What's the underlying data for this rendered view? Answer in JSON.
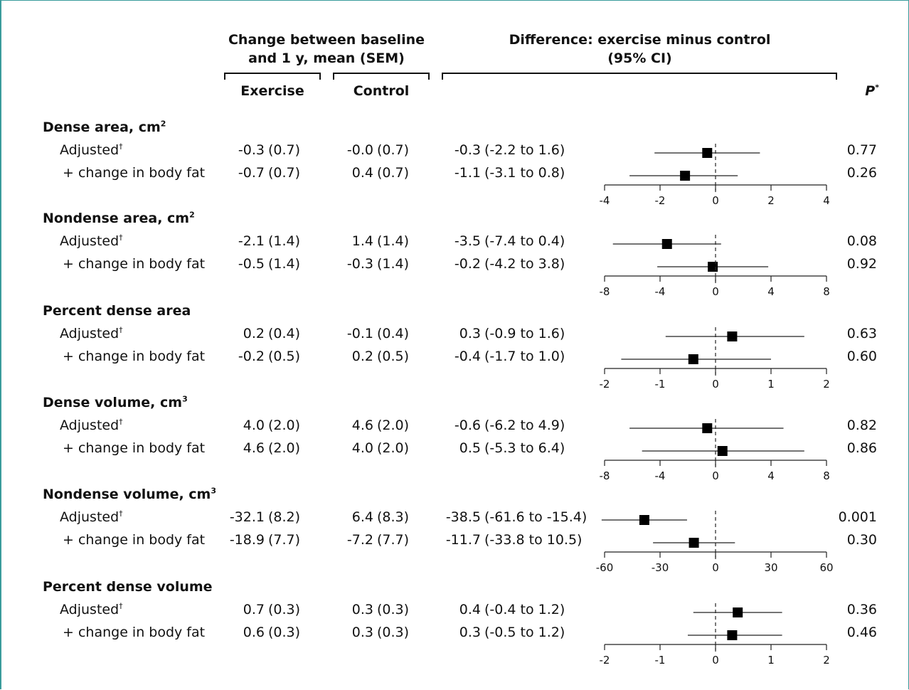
{
  "headers": {
    "change": [
      "Change between baseline",
      "and 1 y, mean (SEM)"
    ],
    "difference": [
      "Difference: exercise minus control",
      "(95% CI)"
    ],
    "exercise": "Exercise",
    "control": "Control",
    "p_label": "P",
    "p_mark": "*"
  },
  "row_labels": {
    "adjusted": "Adjusted",
    "adjusted_mark": "†",
    "bodyfat": "+ change in body fat"
  },
  "chart_data": {
    "type": "forest",
    "reference_line": 0,
    "sections": [
      {
        "title": "Dense area, cm",
        "sup": "2",
        "ticks": [
          "-4",
          "-2",
          "0",
          "2",
          "4"
        ],
        "xlim": [
          -4,
          4
        ],
        "rows": [
          {
            "exercise": "-0.3",
            "exercise_sem": "(0.7)",
            "control": "-0.0",
            "control_sem": "(0.7)",
            "diff": "-0.3",
            "ci_text": "(-2.2 to 1.6)",
            "p": "0.77",
            "est": -0.3,
            "lo": -2.2,
            "hi": 1.6
          },
          {
            "exercise": "-0.7",
            "exercise_sem": "(0.7)",
            "control": "0.4",
            "control_sem": "(0.7)",
            "diff": "-1.1",
            "ci_text": "(-3.1 to 0.8)",
            "p": "0.26",
            "est": -1.1,
            "lo": -3.1,
            "hi": 0.8
          }
        ]
      },
      {
        "title": "Nondense area, cm",
        "sup": "2",
        "ticks": [
          "-8",
          "-4",
          "0",
          "4",
          "8"
        ],
        "xlim": [
          -8,
          8
        ],
        "rows": [
          {
            "exercise": "-2.1",
            "exercise_sem": "(1.4)",
            "control": "1.4",
            "control_sem": "(1.4)",
            "diff": "-3.5",
            "ci_text": "(-7.4 to 0.4)",
            "p": "0.08",
            "est": -3.5,
            "lo": -7.4,
            "hi": 0.4
          },
          {
            "exercise": "-0.5",
            "exercise_sem": "(1.4)",
            "control": "-0.3",
            "control_sem": "(1.4)",
            "diff": "-0.2",
            "ci_text": "(-4.2 to 3.8)",
            "p": "0.92",
            "est": -0.2,
            "lo": -4.2,
            "hi": 3.8
          }
        ]
      },
      {
        "title": "Percent dense area",
        "sup": "",
        "ticks": [
          "-2",
          "-1",
          "0",
          "1",
          "2"
        ],
        "xlim": [
          -2,
          2
        ],
        "rows": [
          {
            "exercise": "0.2",
            "exercise_sem": "(0.4)",
            "control": "-0.1",
            "control_sem": "(0.4)",
            "diff": "0.3",
            "ci_text": "(-0.9 to 1.6)",
            "p": "0.63",
            "est": 0.3,
            "lo": -0.9,
            "hi": 1.6
          },
          {
            "exercise": "-0.2",
            "exercise_sem": "(0.5)",
            "control": "0.2",
            "control_sem": "(0.5)",
            "diff": "-0.4",
            "ci_text": "(-1.7 to 1.0)",
            "p": "0.60",
            "est": -0.4,
            "lo": -1.7,
            "hi": 1.0
          }
        ]
      },
      {
        "title": "Dense volume, cm",
        "sup": "3",
        "ticks": [
          "-8",
          "-4",
          "0",
          "4",
          "8"
        ],
        "xlim": [
          -8,
          8
        ],
        "rows": [
          {
            "exercise": "4.0",
            "exercise_sem": "(2.0)",
            "control": "4.6",
            "control_sem": "(2.0)",
            "diff": "-0.6",
            "ci_text": "(-6.2 to 4.9)",
            "p": "0.82",
            "est": -0.6,
            "lo": -6.2,
            "hi": 4.9
          },
          {
            "exercise": "4.6",
            "exercise_sem": "(2.0)",
            "control": "4.0",
            "control_sem": "(2.0)",
            "diff": "0.5",
            "ci_text": "(-5.3 to 6.4)",
            "p": "0.86",
            "est": 0.5,
            "lo": -5.3,
            "hi": 6.4
          }
        ]
      },
      {
        "title": "Nondense volume, cm",
        "sup": "3",
        "ticks": [
          "-60",
          "-30",
          "0",
          "30",
          "60"
        ],
        "xlim": [
          -60,
          60
        ],
        "rows": [
          {
            "exercise": "-32.1",
            "exercise_sem": "(8.2)",
            "control": "6.4",
            "control_sem": "(8.3)",
            "diff": "-38.5",
            "ci_text": "(-61.6 to -15.4)",
            "p": "0.001",
            "est": -38.5,
            "lo": -61.6,
            "hi": -15.4
          },
          {
            "exercise": "-18.9",
            "exercise_sem": "(7.7)",
            "control": "-7.2",
            "control_sem": "(7.7)",
            "diff": "-11.7",
            "ci_text": "(-33.8 to 10.5)",
            "p": "0.30",
            "est": -11.7,
            "lo": -33.8,
            "hi": 10.5
          }
        ]
      },
      {
        "title": "Percent dense volume",
        "sup": "",
        "ticks": [
          "-2",
          "-1",
          "0",
          "1",
          "2"
        ],
        "xlim": [
          -2,
          2
        ],
        "rows": [
          {
            "exercise": "0.7",
            "exercise_sem": "(0.3)",
            "control": "0.3",
            "control_sem": "(0.3)",
            "diff": "0.4",
            "ci_text": "(-0.4 to 1.2)",
            "p": "0.36",
            "est": 0.4,
            "lo": -0.4,
            "hi": 1.2
          },
          {
            "exercise": "0.6",
            "exercise_sem": "(0.3)",
            "control": "0.3",
            "control_sem": "(0.3)",
            "diff": "0.3",
            "ci_text": "(-0.5 to 1.2)",
            "p": "0.46",
            "est": 0.3,
            "lo": -0.5,
            "hi": 1.2
          }
        ]
      }
    ]
  }
}
